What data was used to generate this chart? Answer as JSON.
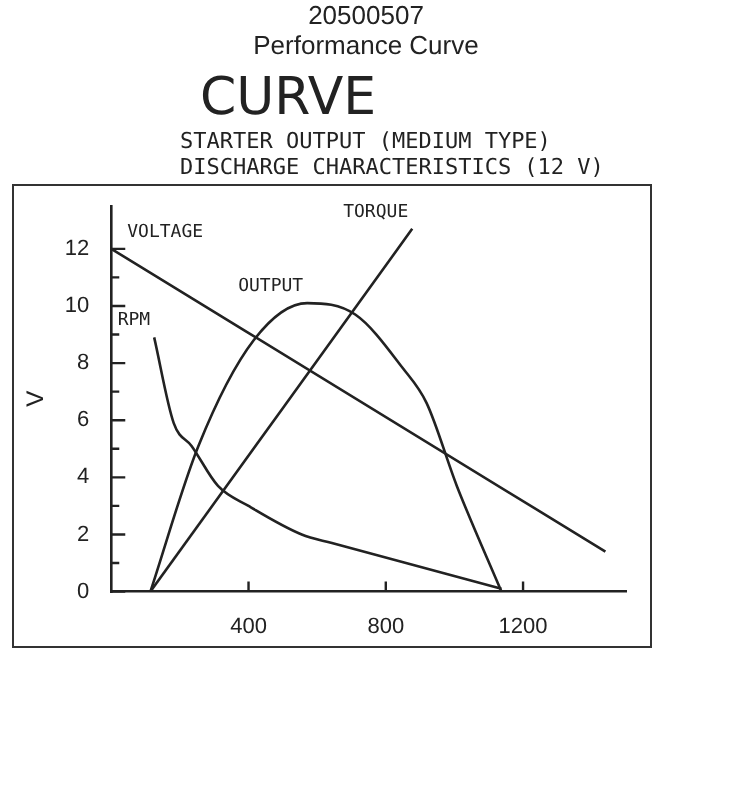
{
  "chart_data": {
    "type": "line",
    "title": "20500507",
    "subtitle": "Performance Curve",
    "annotations": [
      "CURVE",
      "STARTER OUTPUT (MEDIUM TYPE)",
      "DISCHARGE CHARACTERISTICS (12 V)"
    ],
    "ylabel": "V",
    "series": [
      {
        "name": "VOLTAGE",
        "color": "#222222",
        "x": [
          0,
          1440
        ],
        "values": [
          12,
          1.4
        ]
      },
      {
        "name": "TORQUE",
        "color": "#222222",
        "x": [
          114,
          877
        ],
        "values": [
          0,
          12.7
        ]
      },
      {
        "name": "OUTPUT",
        "color": "#222222",
        "x": [
          114,
          254,
          415,
          571,
          711,
          851,
          919,
          1007,
          1137
        ],
        "values": [
          0,
          5.1,
          8.8,
          10.1,
          9.7,
          7.8,
          6.6,
          3.7,
          0
        ]
      },
      {
        "name": "RPM",
        "color": "#222222",
        "x": [
          125,
          182,
          234,
          311,
          400,
          555,
          643,
          1137
        ],
        "values": [
          8.9,
          5.9,
          5.1,
          3.7,
          3.0,
          2.0,
          1.7,
          0.1
        ]
      }
    ],
    "xlim": [
      0,
      1500
    ],
    "xticks": [
      400,
      800,
      1200
    ],
    "ylim": [
      0,
      13.5
    ],
    "yticks": [
      0,
      {
        "value": 1,
        "label": null
      },
      2,
      {
        "value": 3,
        "label": null
      },
      4,
      {
        "value": 5,
        "label": null
      },
      6,
      {
        "value": 7,
        "label": null
      },
      8,
      {
        "value": 9,
        "label": null
      },
      10,
      {
        "value": 11,
        "label": null
      },
      12
    ],
    "grid": false,
    "legend": false,
    "marker": "none",
    "line_style": "solid"
  }
}
